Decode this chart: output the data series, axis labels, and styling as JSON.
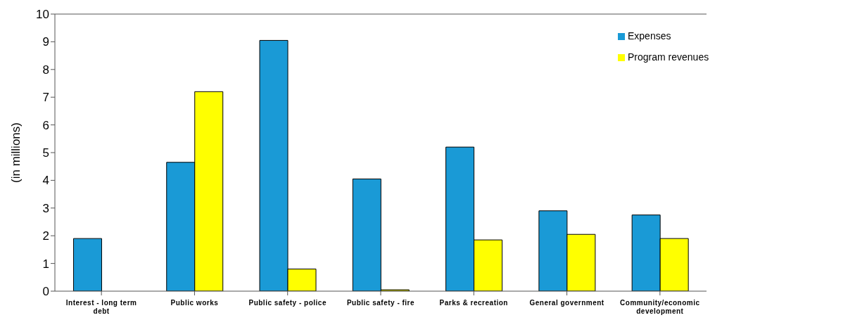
{
  "chart_data": {
    "type": "bar",
    "ylabel": "(in millions)",
    "categories": [
      "Interest - long term debt",
      "Public works",
      "Public safety - police",
      "Public safety - fire",
      "Parks & recreation",
      "General government",
      "Community/economic development"
    ],
    "series": [
      {
        "name": "Expenses",
        "color": "#1a9ad6",
        "values": [
          1.9,
          4.65,
          9.05,
          4.05,
          5.2,
          2.9,
          2.75
        ]
      },
      {
        "name": "Program revenues",
        "color": "#ffff00",
        "values": [
          null,
          7.2,
          0.8,
          0.05,
          1.85,
          2.05,
          1.9
        ]
      }
    ],
    "ylim": [
      0,
      10
    ],
    "yticks": [
      0,
      1,
      2,
      3,
      4,
      5,
      6,
      7,
      8,
      9,
      10
    ],
    "grid": false,
    "legend": "top right"
  }
}
